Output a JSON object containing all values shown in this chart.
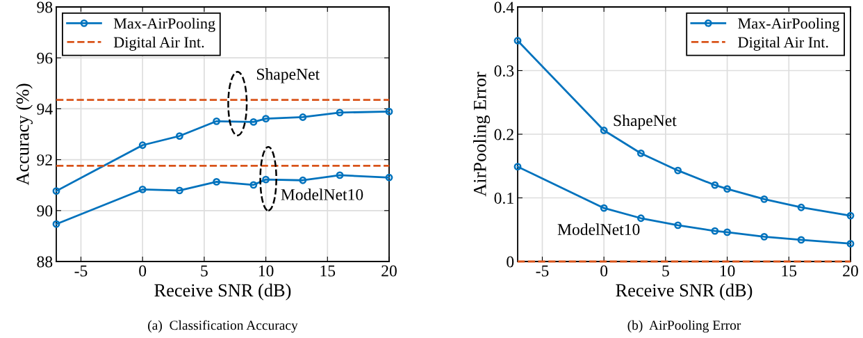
{
  "chart_data": [
    {
      "type": "line",
      "xlabel": "Receive SNR (dB)",
      "ylabel": "Accuracy (%)",
      "x": [
        -7,
        0,
        3,
        6,
        9,
        10,
        13,
        16,
        20
      ],
      "series": [
        {
          "name": "Max-AirPooling",
          "color": "#0072bd",
          "marker": "circle",
          "line_style": "solid",
          "values": [
            90.77,
            92.57,
            92.93,
            93.51,
            93.48,
            93.61,
            93.67,
            93.85,
            93.89
          ]
        },
        {
          "color": "#0072bd",
          "marker": "circle",
          "line_style": "solid",
          "values": [
            89.47,
            90.83,
            90.79,
            91.13,
            91.01,
            91.22,
            91.19,
            91.39,
            91.3
          ]
        },
        {
          "name": "Digital Air Int.",
          "color": "#d95319",
          "marker": "none",
          "line_style": "dashed",
          "values": [
            94.35,
            94.35,
            94.35,
            94.35,
            94.35,
            94.35,
            94.35,
            94.35,
            94.35
          ]
        },
        {
          "color": "#d95319",
          "marker": "none",
          "line_style": "dashed",
          "values": [
            91.76,
            91.76,
            91.76,
            91.76,
            91.76,
            91.76,
            91.76,
            91.76,
            91.76
          ]
        }
      ],
      "xlim": [
        -7,
        20
      ],
      "xticks": [
        -5,
        0,
        5,
        10,
        15,
        20
      ],
      "ylim": [
        88,
        98
      ],
      "yticks": [
        88,
        90,
        92,
        94,
        96,
        98
      ],
      "grid": true,
      "legend": "top left",
      "annotations": [
        "ShapeNet",
        "ModelNet10",
        "(a)  Classification Accuracy"
      ]
    },
    {
      "type": "line",
      "xlabel": "Receive SNR (dB)",
      "ylabel": "AirPooling Error",
      "x": [
        -7,
        0,
        3,
        6,
        9,
        10,
        13,
        16,
        20
      ],
      "series": [
        {
          "name": "Max-AirPooling",
          "color": "#0072bd",
          "marker": "circle",
          "line_style": "solid",
          "values": [
            0.347,
            0.206,
            0.17,
            0.143,
            0.12,
            0.114,
            0.098,
            0.085,
            0.072
          ]
        },
        {
          "color": "#0072bd",
          "marker": "circle",
          "line_style": "solid",
          "values": [
            0.149,
            0.084,
            0.068,
            0.057,
            0.048,
            0.046,
            0.039,
            0.034,
            0.028
          ]
        },
        {
          "name": "Digital Air Int.",
          "color": "#d95319",
          "marker": "none",
          "line_style": "dashed",
          "values": [
            0,
            0,
            0,
            0,
            0,
            0,
            0,
            0,
            0
          ]
        }
      ],
      "xlim": [
        -7,
        20
      ],
      "xticks": [
        -5,
        0,
        5,
        10,
        15,
        20
      ],
      "ylim": [
        0,
        0.4
      ],
      "yticks": [
        0,
        0.1,
        0.2,
        0.3,
        0.4
      ],
      "grid": true,
      "legend": "top right",
      "annotations": [
        "ShapeNet",
        "ModelNet10",
        "(b)  AirPooling Error"
      ]
    }
  ]
}
